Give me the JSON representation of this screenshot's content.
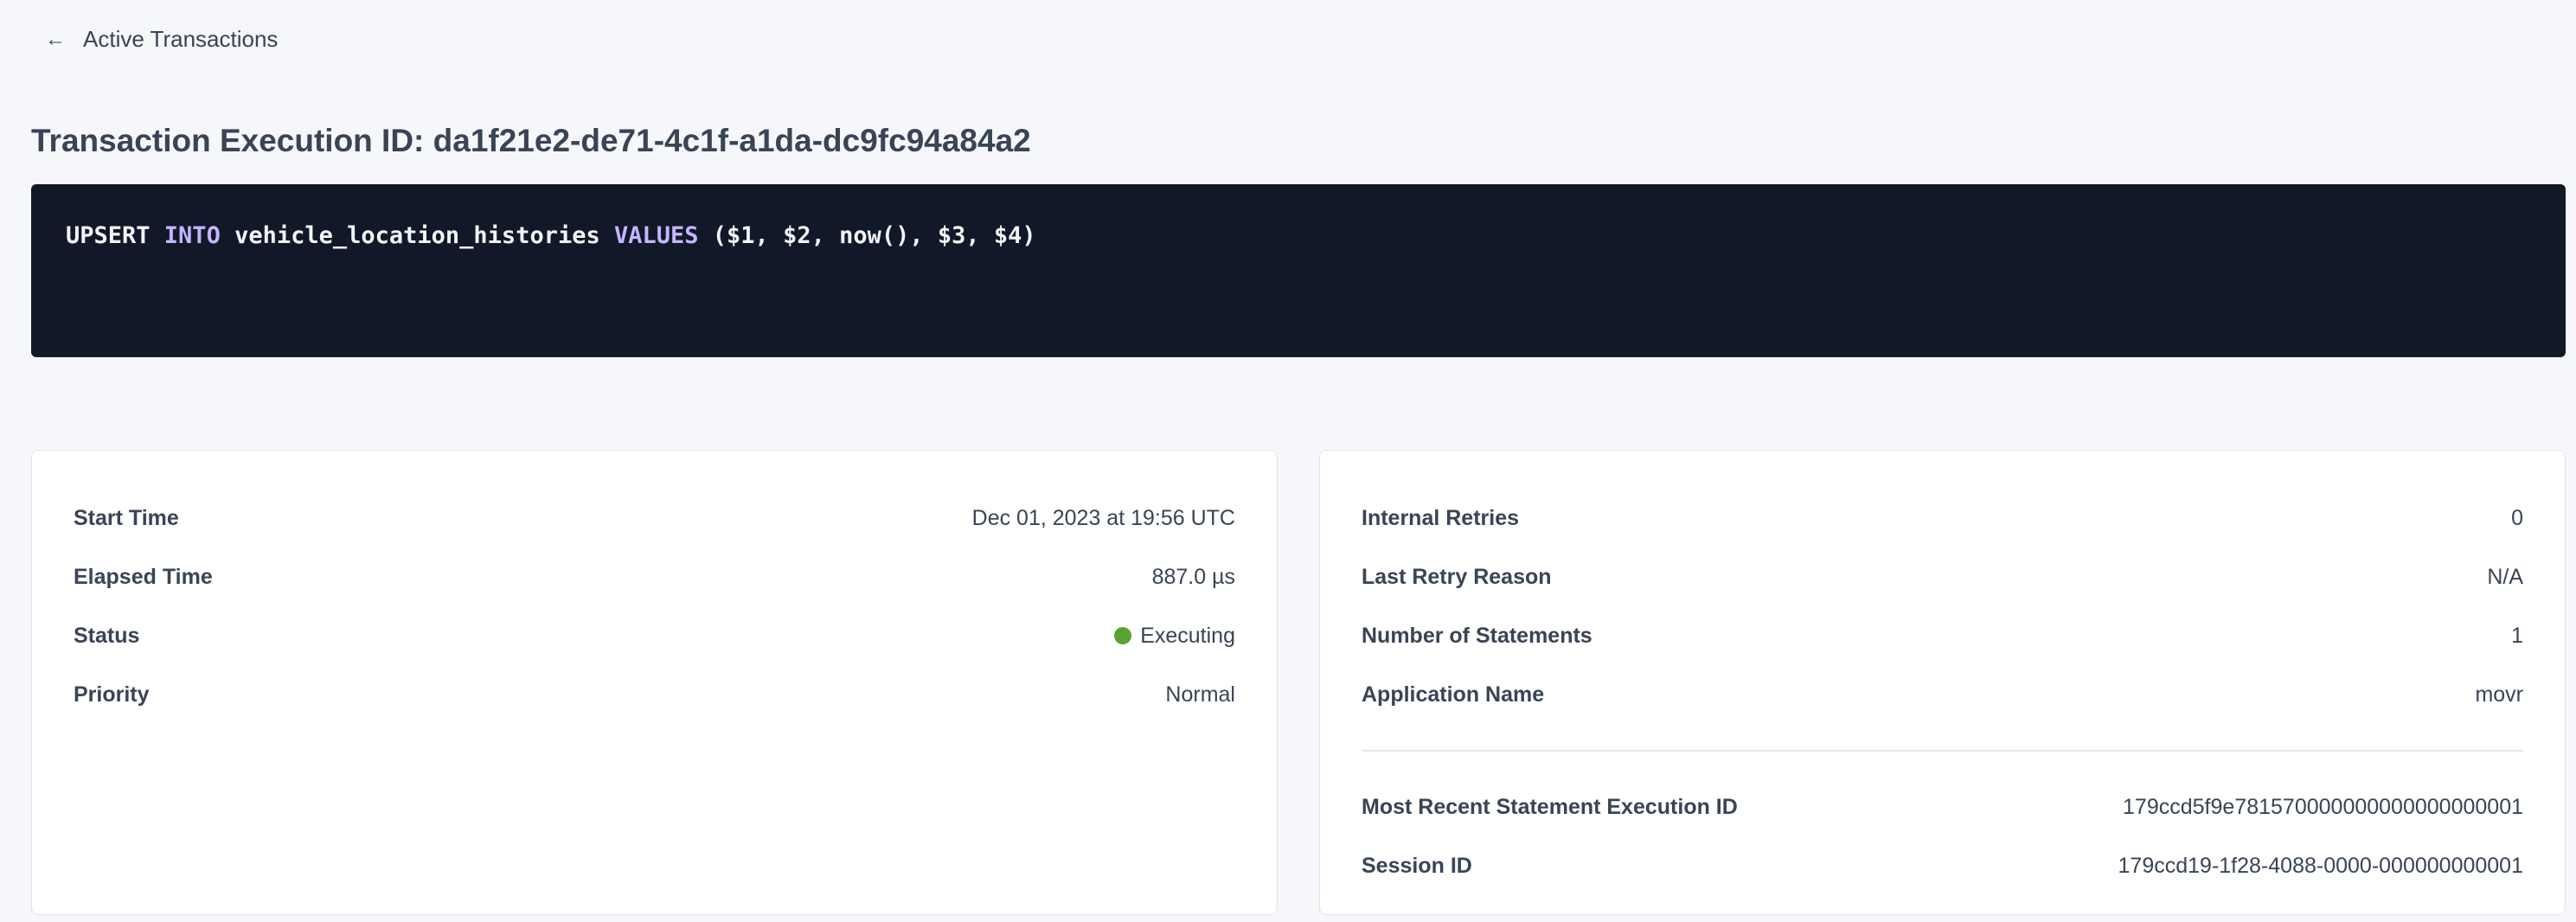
{
  "breadcrumb": {
    "back_label": "Active Transactions",
    "icon": "arrow-left-icon"
  },
  "page_title": "Transaction Execution ID: da1f21e2-de71-4c1f-a1da-dc9fc94a84a2",
  "sql": {
    "tokens": [
      {
        "text": "UPSERT ",
        "keyword": false
      },
      {
        "text": "INTO",
        "keyword": true
      },
      {
        "text": " vehicle_location_histories ",
        "keyword": false
      },
      {
        "text": "VALUES",
        "keyword": true
      },
      {
        "text": " ($1, $2, now(), $3, $4)",
        "keyword": false
      }
    ]
  },
  "left_card": {
    "rows": [
      {
        "label": "Start Time",
        "value": "Dec 01, 2023 at 19:56 UTC"
      },
      {
        "label": "Elapsed Time",
        "value": "887.0 µs"
      },
      {
        "label": "Status",
        "value": "Executing",
        "status_color": "#5aa332"
      },
      {
        "label": "Priority",
        "value": "Normal"
      }
    ]
  },
  "right_card": {
    "rows": [
      {
        "label": "Internal Retries",
        "value": "0"
      },
      {
        "label": "Last Retry Reason",
        "value": "N/A"
      },
      {
        "label": "Number of Statements",
        "value": "1"
      },
      {
        "label": "Application Name",
        "value": "movr"
      }
    ],
    "links": [
      {
        "label": "Most Recent Statement Execution ID",
        "value": "179ccd5f9e781570000000000000000001"
      },
      {
        "label": "Session ID",
        "value": "179ccd19-1f28-4088-0000-000000000001"
      }
    ]
  },
  "colors": {
    "code_bg": "#111827",
    "keyword": "#c4b5fd",
    "link": "#1d4ff0",
    "status_executing": "#5aa332"
  }
}
